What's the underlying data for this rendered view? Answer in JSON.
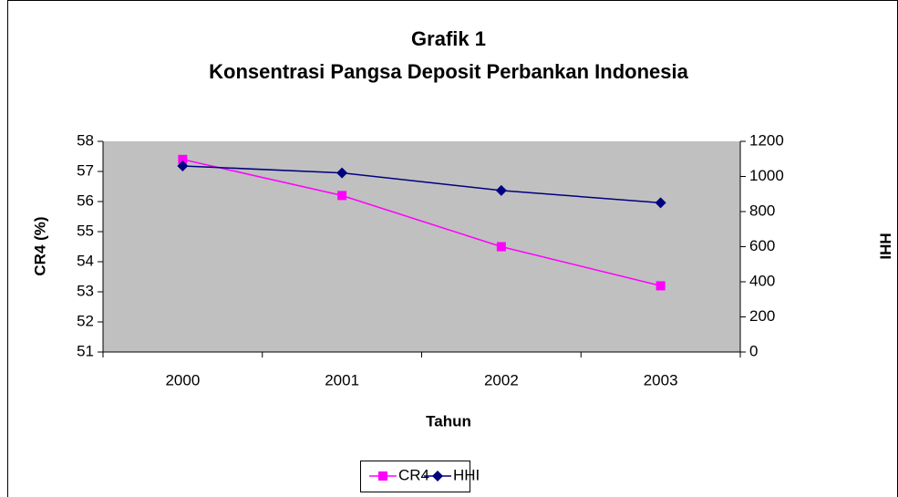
{
  "chart_data": {
    "type": "line",
    "title": "Grafik 1",
    "subtitle": "Konsentrasi Pangsa Deposit Perbankan Indonesia",
    "xlabel": "Tahun",
    "ylabel": "CR4 (%)",
    "y2label": "HHI",
    "categories": [
      "2000",
      "2001",
      "2002",
      "2003"
    ],
    "series": [
      {
        "name": "CR4",
        "color": "#ff00ff",
        "marker": "square",
        "values": [
          57.4,
          56.2,
          54.5,
          53.2
        ]
      },
      {
        "name": "HHI",
        "color": "#000080",
        "marker": "diamond",
        "axis": "y2",
        "values": [
          1060,
          1020,
          920,
          850
        ]
      }
    ],
    "ylim": [
      51,
      58
    ],
    "yticks": [
      51,
      52,
      53,
      54,
      55,
      56,
      57,
      58
    ],
    "y2lim": [
      0,
      1200
    ],
    "y2ticks": [
      0,
      200,
      400,
      600,
      800,
      1000,
      1200
    ],
    "legend": "bottom"
  }
}
